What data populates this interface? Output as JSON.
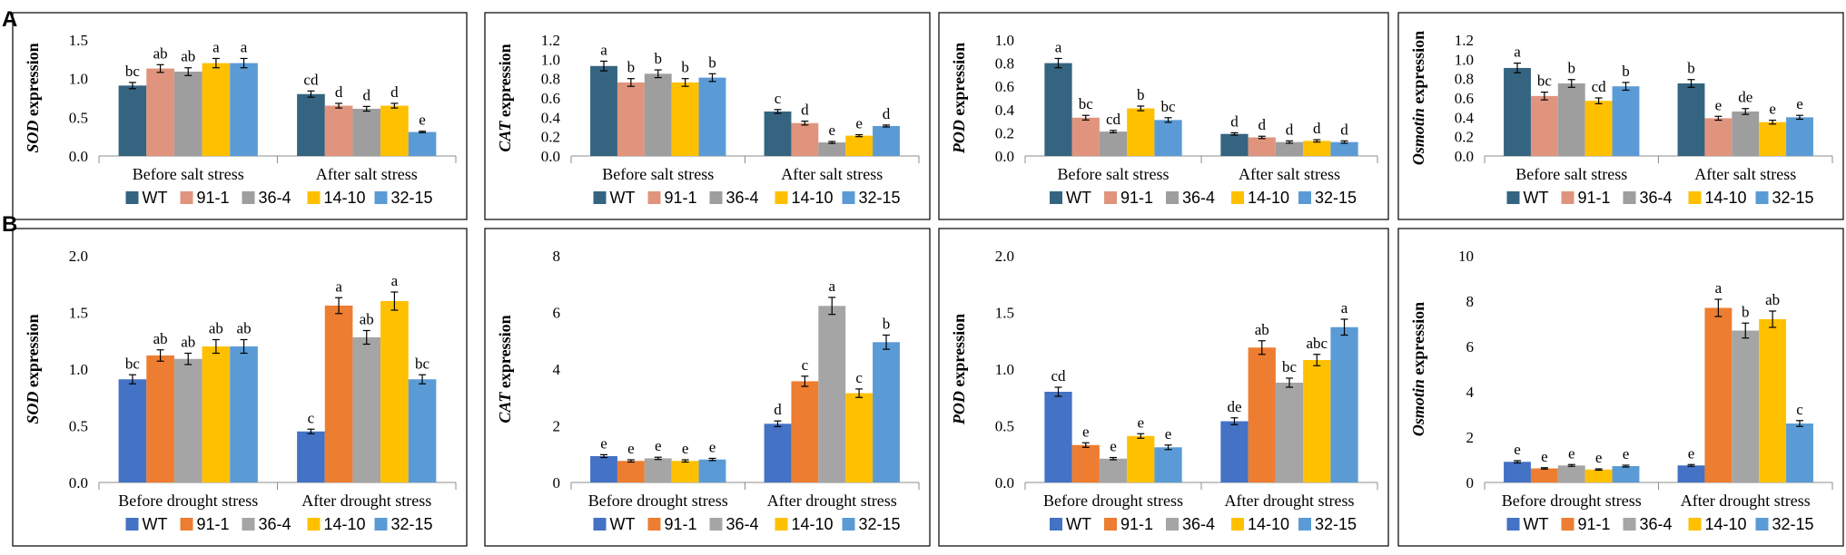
{
  "figure": {
    "panel_labels": [
      "A",
      "B"
    ],
    "colors_row1": [
      "#346480",
      "#e0947d",
      "#9e9e9e",
      "#ffc000",
      "#5b9bd5"
    ],
    "colors_row2": [
      "#4472c4",
      "#ed7d31",
      "#a5a5a5",
      "#ffc000",
      "#5b9bd5"
    ],
    "error_color": "#000000"
  },
  "chart_data": [
    {
      "type": "bar",
      "row": 0,
      "col": 0,
      "ylabel_italic": "SOD",
      "ylabel_rest": " expression",
      "ylim": [
        0,
        1.5
      ],
      "ticks": [
        "0.0",
        "0.5",
        "1.0",
        "1.5"
      ],
      "categories": [
        "Before salt stress",
        "After salt stress"
      ],
      "legend": [
        "WT",
        "91-1",
        "36-4",
        "14-10",
        "32-15"
      ],
      "series": [
        {
          "name": "WT",
          "values": [
            0.91,
            0.8
          ],
          "errors": [
            0.04,
            0.04
          ],
          "letters": [
            "bc",
            "cd"
          ]
        },
        {
          "name": "91-1",
          "values": [
            1.13,
            0.65
          ],
          "errors": [
            0.05,
            0.03
          ],
          "letters": [
            "ab",
            "d"
          ]
        },
        {
          "name": "36-4",
          "values": [
            1.09,
            0.61
          ],
          "errors": [
            0.05,
            0.03
          ],
          "letters": [
            "ab",
            "d"
          ]
        },
        {
          "name": "14-10",
          "values": [
            1.2,
            0.65
          ],
          "errors": [
            0.06,
            0.03
          ],
          "letters": [
            "a",
            "d"
          ]
        },
        {
          "name": "32-15",
          "values": [
            1.2,
            0.31
          ],
          "errors": [
            0.06,
            0.01
          ],
          "letters": [
            "a",
            "e"
          ]
        }
      ]
    },
    {
      "type": "bar",
      "row": 0,
      "col": 1,
      "ylabel_italic": "CAT",
      "ylabel_rest": " expression",
      "ylim": [
        0,
        1.2
      ],
      "ticks": [
        "0.0",
        "0.2",
        "0.4",
        "0.6",
        "0.8",
        "1.0",
        "1.2"
      ],
      "categories": [
        "Before salt stress",
        "After salt stress"
      ],
      "legend": [
        "WT",
        "91-1",
        "36-4",
        "14-10",
        "32-15"
      ],
      "series": [
        {
          "name": "WT",
          "values": [
            0.93,
            0.46
          ],
          "errors": [
            0.05,
            0.02
          ],
          "letters": [
            "a",
            "c"
          ]
        },
        {
          "name": "91-1",
          "values": [
            0.76,
            0.34
          ],
          "errors": [
            0.04,
            0.02
          ],
          "letters": [
            "b",
            "d"
          ]
        },
        {
          "name": "36-4",
          "values": [
            0.85,
            0.14
          ],
          "errors": [
            0.04,
            0.01
          ],
          "letters": [
            "b",
            "e"
          ]
        },
        {
          "name": "14-10",
          "values": [
            0.76,
            0.21
          ],
          "errors": [
            0.04,
            0.01
          ],
          "letters": [
            "b",
            "e"
          ]
        },
        {
          "name": "32-15",
          "values": [
            0.81,
            0.31
          ],
          "errors": [
            0.04,
            0.01
          ],
          "letters": [
            "b",
            "d"
          ]
        }
      ]
    },
    {
      "type": "bar",
      "row": 0,
      "col": 2,
      "ylabel_italic": "POD",
      "ylabel_rest": " expression",
      "ylim": [
        0,
        1.0
      ],
      "ticks": [
        "0.0",
        "0.2",
        "0.4",
        "0.6",
        "0.8",
        "1.0"
      ],
      "categories": [
        "Before salt stress",
        "After salt stress"
      ],
      "legend": [
        "WT",
        "91-1",
        "36-4",
        "14-10",
        "32-15"
      ],
      "series": [
        {
          "name": "WT",
          "values": [
            0.8,
            0.19
          ],
          "errors": [
            0.04,
            0.01
          ],
          "letters": [
            "a",
            "d"
          ]
        },
        {
          "name": "91-1",
          "values": [
            0.33,
            0.16
          ],
          "errors": [
            0.02,
            0.01
          ],
          "letters": [
            "bc",
            "d"
          ]
        },
        {
          "name": "36-4",
          "values": [
            0.21,
            0.12
          ],
          "errors": [
            0.01,
            0.01
          ],
          "letters": [
            "cd",
            "d"
          ]
        },
        {
          "name": "14-10",
          "values": [
            0.41,
            0.13
          ],
          "errors": [
            0.02,
            0.01
          ],
          "letters": [
            "b",
            "d"
          ]
        },
        {
          "name": "32-15",
          "values": [
            0.31,
            0.12
          ],
          "errors": [
            0.02,
            0.01
          ],
          "letters": [
            "bc",
            "d"
          ]
        }
      ]
    },
    {
      "type": "bar",
      "row": 0,
      "col": 3,
      "ylabel_italic": "Osmotin",
      "ylabel_rest": " expression",
      "ylim": [
        0,
        1.2
      ],
      "ticks": [
        "0.0",
        "0.2",
        "0.4",
        "0.6",
        "0.8",
        "1.0",
        "1.2"
      ],
      "categories": [
        "Before salt stress",
        "After salt stress"
      ],
      "legend": [
        "WT",
        "91-1",
        "36-4",
        "14-10",
        "32-15"
      ],
      "series": [
        {
          "name": "WT",
          "values": [
            0.91,
            0.75
          ],
          "errors": [
            0.05,
            0.04
          ],
          "letters": [
            "a",
            "b"
          ]
        },
        {
          "name": "91-1",
          "values": [
            0.62,
            0.39
          ],
          "errors": [
            0.04,
            0.02
          ],
          "letters": [
            "bc",
            "e"
          ]
        },
        {
          "name": "36-4",
          "values": [
            0.75,
            0.46
          ],
          "errors": [
            0.04,
            0.03
          ],
          "letters": [
            "b",
            "de"
          ]
        },
        {
          "name": "14-10",
          "values": [
            0.57,
            0.35
          ],
          "errors": [
            0.03,
            0.02
          ],
          "letters": [
            "cd",
            "e"
          ]
        },
        {
          "name": "32-15",
          "values": [
            0.72,
            0.4
          ],
          "errors": [
            0.04,
            0.02
          ],
          "letters": [
            "b",
            "e"
          ]
        }
      ]
    },
    {
      "type": "bar",
      "row": 1,
      "col": 0,
      "ylabel_italic": "SOD",
      "ylabel_rest": " expression",
      "ylim": [
        0,
        2.0
      ],
      "ticks": [
        "0.0",
        "0.5",
        "1.0",
        "1.5",
        "2.0"
      ],
      "categories": [
        "Before drought stress",
        "After drought stress"
      ],
      "legend": [
        "WT",
        "91-1",
        "36-4",
        "14-10",
        "32-15"
      ],
      "series": [
        {
          "name": "WT",
          "values": [
            0.91,
            0.45
          ],
          "errors": [
            0.04,
            0.02
          ],
          "letters": [
            "bc",
            "c"
          ]
        },
        {
          "name": "91-1",
          "values": [
            1.12,
            1.56
          ],
          "errors": [
            0.05,
            0.07
          ],
          "letters": [
            "ab",
            "a"
          ]
        },
        {
          "name": "36-4",
          "values": [
            1.09,
            1.28
          ],
          "errors": [
            0.05,
            0.06
          ],
          "letters": [
            "ab",
            "ab"
          ]
        },
        {
          "name": "14-10",
          "values": [
            1.2,
            1.6
          ],
          "errors": [
            0.06,
            0.08
          ],
          "letters": [
            "ab",
            "a"
          ]
        },
        {
          "name": "32-15",
          "values": [
            1.2,
            0.91
          ],
          "errors": [
            0.06,
            0.04
          ],
          "letters": [
            "ab",
            "bc"
          ]
        }
      ]
    },
    {
      "type": "bar",
      "row": 1,
      "col": 1,
      "ylabel_italic": "CAT",
      "ylabel_rest": " expression",
      "ylim": [
        0,
        8
      ],
      "ticks": [
        "0",
        "2",
        "4",
        "6",
        "8"
      ],
      "categories": [
        "Before drought stress",
        "After drought stress"
      ],
      "legend": [
        "WT",
        "91-1",
        "36-4",
        "14-10",
        "32-15"
      ],
      "series": [
        {
          "name": "WT",
          "values": [
            0.93,
            2.07
          ],
          "errors": [
            0.05,
            0.1
          ],
          "letters": [
            "e",
            "d"
          ]
        },
        {
          "name": "91-1",
          "values": [
            0.76,
            3.57
          ],
          "errors": [
            0.04,
            0.18
          ],
          "letters": [
            "e",
            "c"
          ]
        },
        {
          "name": "36-4",
          "values": [
            0.85,
            6.23
          ],
          "errors": [
            0.04,
            0.3
          ],
          "letters": [
            "e",
            "a"
          ]
        },
        {
          "name": "14-10",
          "values": [
            0.76,
            3.15
          ],
          "errors": [
            0.04,
            0.15
          ],
          "letters": [
            "e",
            "c"
          ]
        },
        {
          "name": "32-15",
          "values": [
            0.81,
            4.95
          ],
          "errors": [
            0.04,
            0.25
          ],
          "letters": [
            "e",
            "b"
          ]
        }
      ]
    },
    {
      "type": "bar",
      "row": 1,
      "col": 2,
      "ylabel_italic": "POD",
      "ylabel_rest": " expression",
      "ylim": [
        0,
        2.0
      ],
      "ticks": [
        "0.0",
        "0.5",
        "1.0",
        "1.5",
        "2.0"
      ],
      "categories": [
        "Before drought stress",
        "After drought stress"
      ],
      "legend": [
        "WT",
        "91-1",
        "36-4",
        "14-10",
        "32-15"
      ],
      "series": [
        {
          "name": "WT",
          "values": [
            0.8,
            0.54
          ],
          "errors": [
            0.04,
            0.03
          ],
          "letters": [
            "cd",
            "de"
          ]
        },
        {
          "name": "91-1",
          "values": [
            0.33,
            1.19
          ],
          "errors": [
            0.02,
            0.06
          ],
          "letters": [
            "e",
            "ab"
          ]
        },
        {
          "name": "36-4",
          "values": [
            0.21,
            0.88
          ],
          "errors": [
            0.01,
            0.04
          ],
          "letters": [
            "e",
            "bc"
          ]
        },
        {
          "name": "14-10",
          "values": [
            0.41,
            1.08
          ],
          "errors": [
            0.02,
            0.05
          ],
          "letters": [
            "e",
            "abc"
          ]
        },
        {
          "name": "32-15",
          "values": [
            0.31,
            1.37
          ],
          "errors": [
            0.02,
            0.07
          ],
          "letters": [
            "e",
            "a"
          ]
        }
      ]
    },
    {
      "type": "bar",
      "row": 1,
      "col": 3,
      "ylabel_italic": "Osmotin",
      "ylabel_rest": " expression",
      "ylim": [
        0,
        10
      ],
      "ticks": [
        "0",
        "2",
        "4",
        "6",
        "8",
        "10"
      ],
      "categories": [
        "Before drought stress",
        "After drought stress"
      ],
      "legend": [
        "WT",
        "91-1",
        "36-4",
        "14-10",
        "32-15"
      ],
      "series": [
        {
          "name": "WT",
          "values": [
            0.91,
            0.75
          ],
          "errors": [
            0.05,
            0.04
          ],
          "letters": [
            "e",
            "e"
          ]
        },
        {
          "name": "91-1",
          "values": [
            0.62,
            7.7
          ],
          "errors": [
            0.03,
            0.38
          ],
          "letters": [
            "e",
            "a"
          ]
        },
        {
          "name": "36-4",
          "values": [
            0.75,
            6.7
          ],
          "errors": [
            0.04,
            0.33
          ],
          "letters": [
            "e",
            "b"
          ]
        },
        {
          "name": "14-10",
          "values": [
            0.57,
            7.2
          ],
          "errors": [
            0.03,
            0.36
          ],
          "letters": [
            "e",
            "ab"
          ]
        },
        {
          "name": "32-15",
          "values": [
            0.72,
            2.6
          ],
          "errors": [
            0.04,
            0.13
          ],
          "letters": [
            "e",
            "c"
          ]
        }
      ]
    }
  ]
}
